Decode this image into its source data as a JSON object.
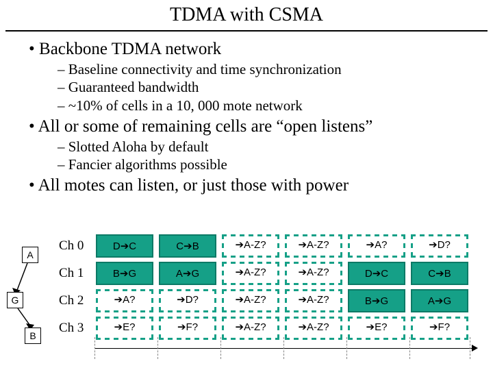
{
  "title": "TDMA with CSMA",
  "bullets": [
    {
      "text": "Backbone TDMA network",
      "sub": [
        "Baseline connectivity and time synchronization",
        "Guaranteed bandwidth",
        "~10% of cells in a 10, 000 mote network"
      ]
    },
    {
      "text": "All or some of remaining cells are “open listens”",
      "sub": [
        "Slotted Aloha by default",
        "Fancier algorithms possible"
      ]
    },
    {
      "text": "All motes can listen, or just those with power",
      "sub": []
    }
  ],
  "nodes": {
    "a": "A",
    "g": "G",
    "b": "B"
  },
  "channels": [
    "Ch 0",
    "Ch 1",
    "Ch 2",
    "Ch 3"
  ],
  "grid": {
    "rows": [
      [
        {
          "text": "D→C",
          "style": "solid"
        },
        {
          "text": "C→B",
          "style": "solid"
        },
        {
          "text": "→A-Z?",
          "style": "dashed"
        },
        {
          "text": "→A-Z?",
          "style": "dashed"
        },
        {
          "text": "→A?",
          "style": "dashed"
        },
        {
          "text": "→D?",
          "style": "dashed"
        }
      ],
      [
        {
          "text": "B→G",
          "style": "solid"
        },
        {
          "text": "A→G",
          "style": "solid"
        },
        {
          "text": "→A-Z?",
          "style": "dashed"
        },
        {
          "text": "→A-Z?",
          "style": "dashed"
        },
        {
          "text": "D→C",
          "style": "solid"
        },
        {
          "text": "C→B",
          "style": "solid"
        }
      ],
      [
        {
          "text": "→A?",
          "style": "dashed"
        },
        {
          "text": "→D?",
          "style": "dashed"
        },
        {
          "text": "→A-Z?",
          "style": "dashed"
        },
        {
          "text": "→A-Z?",
          "style": "dashed"
        },
        {
          "text": "B→G",
          "style": "solid"
        },
        {
          "text": "A→G",
          "style": "solid"
        }
      ],
      [
        {
          "text": "→E?",
          "style": "dashed"
        },
        {
          "text": "→F?",
          "style": "dashed"
        },
        {
          "text": "→A-Z?",
          "style": "dashed"
        },
        {
          "text": "→A-Z?",
          "style": "dashed"
        },
        {
          "text": "→E?",
          "style": "dashed"
        },
        {
          "text": "→F?",
          "style": "dashed"
        }
      ]
    ]
  },
  "colors": {
    "solid_fill": "#15a087",
    "solid_border": "#0c7a66",
    "dashed_border": "#15a087",
    "bg": "#ffffff"
  },
  "tick_positions": [
    0,
    92,
    184,
    276,
    368,
    460,
    548
  ]
}
